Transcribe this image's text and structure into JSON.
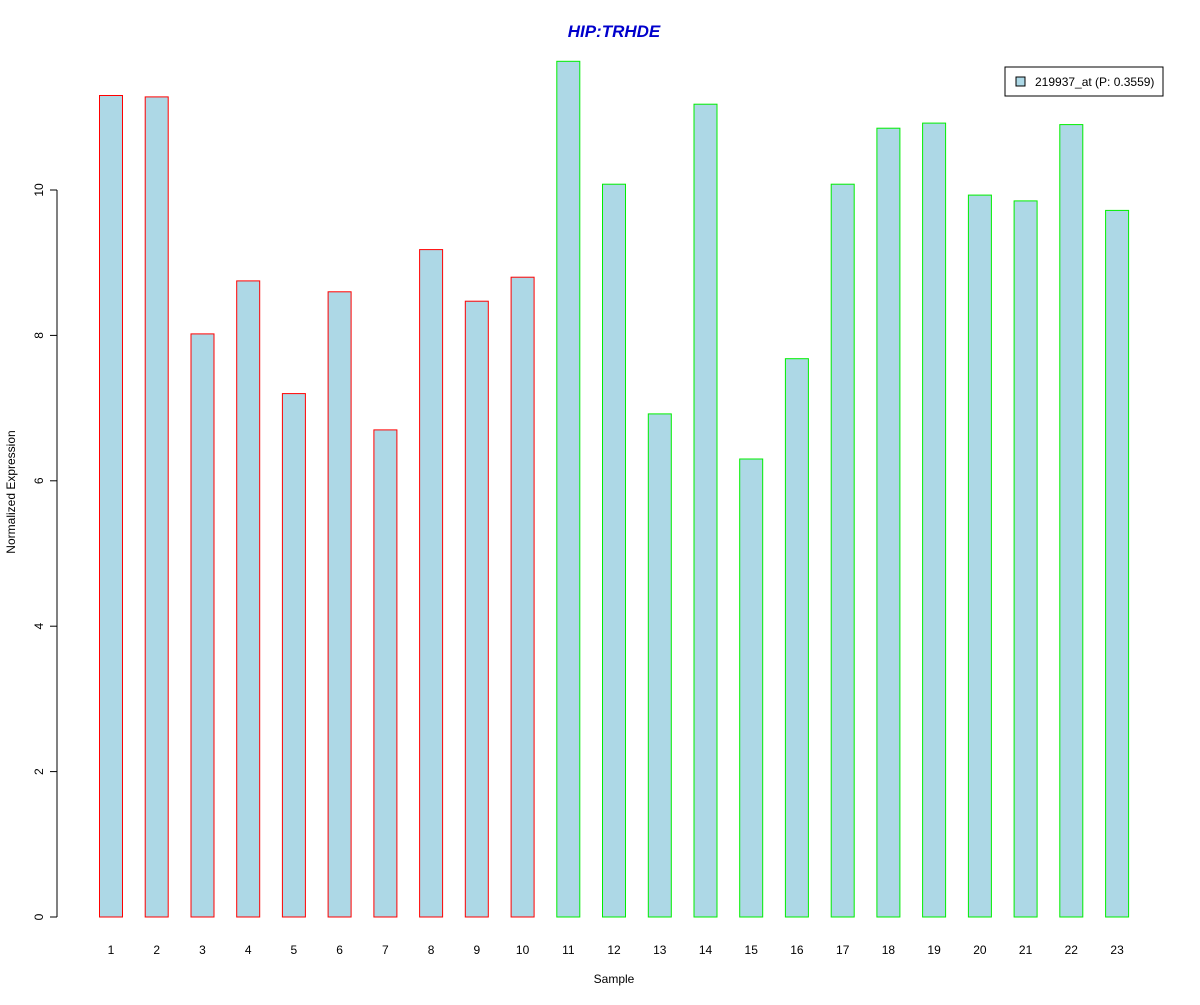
{
  "chart_data": {
    "type": "bar",
    "title": "HIP:TRHDE",
    "xlabel": "Sample",
    "ylabel": "Normalized Expression",
    "ylim": [
      0,
      12
    ],
    "y_ticks": [
      0,
      2,
      4,
      6,
      8,
      10
    ],
    "grid": false,
    "legend_position": "top-right",
    "categories": [
      "1",
      "2",
      "3",
      "4",
      "5",
      "6",
      "7",
      "8",
      "9",
      "10",
      "11",
      "12",
      "13",
      "14",
      "15",
      "16",
      "17",
      "18",
      "19",
      "20",
      "21",
      "22",
      "23"
    ],
    "series": [
      {
        "name": "219937_at (P: 0.3559)",
        "values": [
          11.3,
          11.28,
          8.02,
          8.75,
          7.2,
          8.6,
          6.7,
          9.18,
          8.47,
          8.8,
          11.77,
          10.08,
          6.92,
          11.18,
          6.3,
          7.68,
          10.08,
          10.85,
          10.92,
          9.93,
          9.85,
          10.9,
          9.72
        ],
        "groups": [
          0,
          0,
          0,
          0,
          0,
          0,
          0,
          0,
          0,
          0,
          1,
          1,
          1,
          1,
          1,
          1,
          1,
          1,
          1,
          1,
          1,
          1,
          1
        ]
      }
    ],
    "colors": {
      "title": "#0000CC",
      "bar_fill": "#ADD8E6",
      "group_borders": [
        "#FF0000",
        "#00EE00"
      ],
      "axis": "#000000"
    }
  }
}
